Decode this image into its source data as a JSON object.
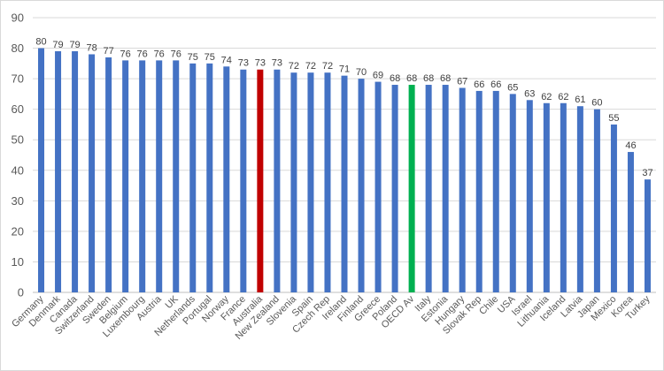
{
  "chart_data": {
    "type": "bar",
    "title": "",
    "xlabel": "",
    "ylabel": "",
    "ylim": [
      0,
      90
    ],
    "yticks": [
      0,
      10,
      20,
      30,
      40,
      50,
      60,
      70,
      80,
      90
    ],
    "grid": true,
    "legend": "none",
    "colors": {
      "default": "#4472C4",
      "highlight_australia": "#C00000",
      "highlight_oecd": "#00B050"
    },
    "categories": [
      "Germany",
      "Denmark",
      "Canada",
      "Switzerland",
      "Sweden",
      "Belgium",
      "Luxembourg",
      "Austria",
      "UK",
      "Netherlands",
      "Portugal",
      "Norway",
      "France",
      "Australia",
      "New Zealand",
      "Slovenia",
      "Spain",
      "Czech Rep",
      "Ireland",
      "Finland",
      "Greece",
      "Poland",
      "OECD Av",
      "Italy",
      "Estonia",
      "Hungary",
      "Slovak Rep",
      "Chile",
      "USA",
      "Israel",
      "Lithuania",
      "Iceland",
      "Latvia",
      "Japan",
      "Mexico",
      "Korea",
      "Turkey"
    ],
    "values": [
      80,
      79,
      79,
      78,
      77,
      76,
      76,
      76,
      76,
      75,
      75,
      74,
      73,
      73,
      73,
      72,
      72,
      72,
      71,
      70,
      69,
      68,
      68,
      68,
      68,
      67,
      66,
      66,
      65,
      63,
      62,
      62,
      61,
      60,
      55,
      46,
      37
    ],
    "highlights": {
      "Australia": "#C00000",
      "OECD Av": "#00B050"
    }
  }
}
